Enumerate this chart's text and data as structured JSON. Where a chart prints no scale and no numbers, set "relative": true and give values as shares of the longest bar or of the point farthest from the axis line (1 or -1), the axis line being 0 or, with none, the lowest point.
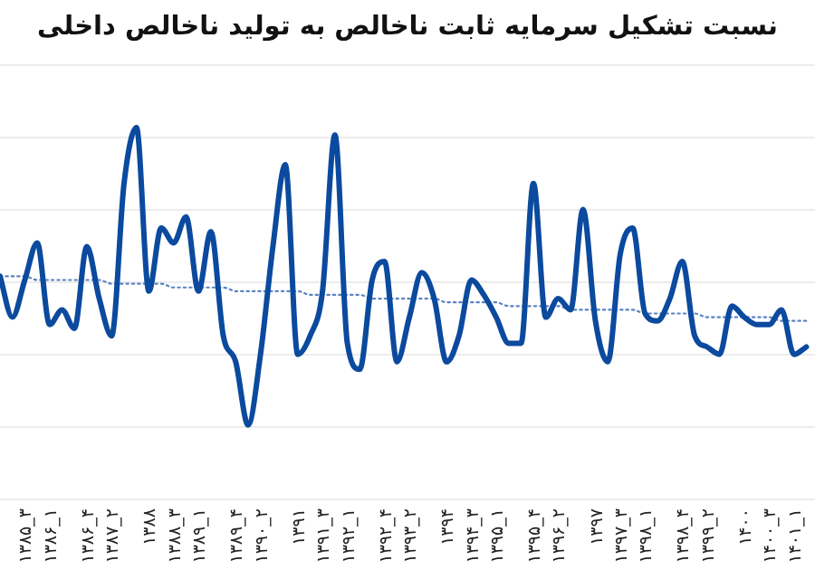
{
  "chart_data": {
    "type": "line",
    "title": "نسبت تشکیل سرمایه ثابت ناخالص به تولید ناخالص داخلی",
    "relative": true,
    "grid": "y",
    "marker": "none",
    "categories": [
      null,
      null,
      "۱۳۸۵_۳",
      null,
      "۱۳۸۶_۱",
      null,
      null,
      "۱۳۸۶_۴",
      null,
      "۱۳۸۷_۲",
      null,
      null,
      "۱۳۸۸",
      null,
      "۱۳۸۸_۳",
      null,
      "۱۳۸۹_۱",
      null,
      null,
      "۱۳۸۹_۴",
      null,
      "۱۳۹۰_۲",
      null,
      null,
      "۱۳۹۱",
      null,
      "۱۳۹۱_۳",
      null,
      "۱۳۹۲_۱",
      null,
      null,
      "۱۳۹۲_۴",
      null,
      "۱۳۹۳_۲",
      null,
      null,
      "۱۳۹۴",
      null,
      "۱۳۹۴_۳",
      null,
      "۱۳۹۵_۱",
      null,
      null,
      "۱۳۹۵_۴",
      null,
      "۱۳۹۶_۲",
      null,
      null,
      "۱۳۹۷",
      null,
      "۱۳۹۷_۳",
      null,
      "۱۳۹۸_۱",
      null,
      null,
      "۱۳۹۸_۴",
      null,
      "۱۳۹۹_۲",
      null,
      null,
      "۱۴۰۰",
      null,
      "۱۴۰۰_۳",
      null,
      "۱۴۰۱_۱",
      null
    ],
    "series": [
      {
        "color": "#0b4a9e",
        "line_style": "solid",
        "values": [
          0.6,
          0.49,
          0.59,
          0.69,
          0.47,
          0.51,
          0.46,
          0.68,
          0.54,
          0.44,
          0.85,
          1.0,
          0.56,
          0.73,
          0.69,
          0.76,
          0.56,
          0.72,
          0.44,
          0.37,
          0.2,
          0.39,
          0.68,
          0.9,
          0.39,
          0.44,
          0.56,
          0.98,
          0.42,
          0.35,
          0.59,
          0.64,
          0.37,
          0.49,
          0.61,
          0.54,
          0.37,
          0.44,
          0.59,
          0.55,
          0.49,
          0.42,
          0.42,
          0.85,
          0.49,
          0.54,
          0.51,
          0.78,
          0.48,
          0.37,
          0.66,
          0.73,
          0.5,
          0.48,
          0.54,
          0.64,
          0.44,
          0.41,
          0.39,
          0.52,
          0.49,
          0.47,
          0.47,
          0.51,
          0.39,
          0.41
        ]
      },
      {
        "color": "#5b84c4",
        "line_style": "dotted",
        "values": [
          0.6,
          0.6,
          0.6,
          0.59,
          0.59,
          0.59,
          0.59,
          0.59,
          0.59,
          0.58,
          0.58,
          0.58,
          0.58,
          0.58,
          0.57,
          0.57,
          0.57,
          0.57,
          0.57,
          0.56,
          0.56,
          0.56,
          0.56,
          0.56,
          0.56,
          0.55,
          0.55,
          0.55,
          0.55,
          0.55,
          0.54,
          0.54,
          0.54,
          0.54,
          0.54,
          0.54,
          0.53,
          0.53,
          0.53,
          0.53,
          0.53,
          0.52,
          0.52,
          0.52,
          0.52,
          0.52,
          0.51,
          0.51,
          0.51,
          0.51,
          0.51,
          0.51,
          0.5,
          0.5,
          0.5,
          0.5,
          0.5,
          0.49,
          0.49,
          0.49,
          0.49,
          0.49,
          0.49,
          0.48,
          0.48,
          0.48
        ]
      }
    ]
  }
}
